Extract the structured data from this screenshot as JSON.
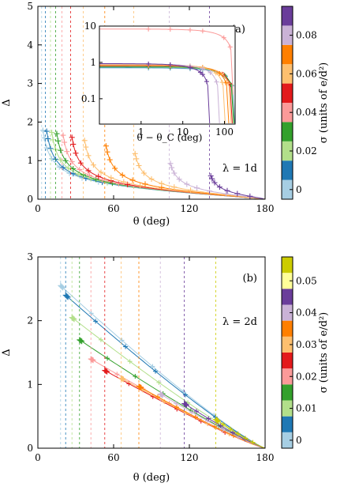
{
  "chart_data": [
    {
      "type": "line",
      "panel_label": "(a)",
      "annotation": "λ = 1d",
      "xlabel": "θ (deg)",
      "ylabel": "Δ",
      "xlim": [
        0,
        180
      ],
      "ylim": [
        0,
        5
      ],
      "xticks": [
        "0",
        "60",
        "120",
        "180"
      ],
      "yticks": [
        "0",
        "1",
        "2",
        "3",
        "4",
        "5"
      ],
      "colorbar": {
        "label": "σ (units of e/d²)",
        "ticks": [
          "0",
          "0.02",
          "0.04",
          "0.06",
          "0.08"
        ],
        "colors": [
          "#a6cee3",
          "#1f78b4",
          "#b2df8a",
          "#33a02c",
          "#fb9a99",
          "#e31a1c",
          "#fdbf6f",
          "#ff7f00",
          "#cab2d6",
          "#6a3d9a"
        ]
      },
      "series": [
        {
          "sigma": 0.0,
          "color": "#a6cee3",
          "theta_c": 3
        },
        {
          "sigma": 0.009,
          "color": "#1f78b4",
          "theta_c": 6
        },
        {
          "sigma": 0.018,
          "color": "#b2df8a",
          "theta_c": 10
        },
        {
          "sigma": 0.027,
          "color": "#33a02c",
          "theta_c": 14
        },
        {
          "sigma": 0.036,
          "color": "#fb9a99",
          "theta_c": 19
        },
        {
          "sigma": 0.045,
          "color": "#e31a1c",
          "theta_c": 26
        },
        {
          "sigma": 0.054,
          "color": "#fdbf6f",
          "theta_c": 36
        },
        {
          "sigma": 0.063,
          "color": "#ff7f00",
          "theta_c": 53
        },
        {
          "sigma": 0.072,
          "color": "#fdbf6f",
          "theta_c": 76
        },
        {
          "sigma": 0.081,
          "color": "#cab2d6",
          "theta_c": 104
        },
        {
          "sigma": 0.09,
          "color": "#6a3d9a",
          "theta_c": 136
        }
      ],
      "inset": {
        "type": "line",
        "xlabel": "θ − θ_C (deg)",
        "ylabel": "",
        "scale": "log-log",
        "xlim": [
          0.1,
          180
        ],
        "ylim": [
          0.02,
          10
        ],
        "xticks": [
          "1",
          "10",
          "100"
        ],
        "yticks": [
          "0.1",
          "1",
          "10"
        ]
      }
    },
    {
      "type": "line",
      "panel_label": "(b)",
      "annotation": "λ = 2d",
      "xlabel": "θ (deg)",
      "ylabel": "Δ",
      "xlim": [
        0,
        180
      ],
      "ylim": [
        0,
        3
      ],
      "xticks": [
        "0",
        "60",
        "120",
        "180"
      ],
      "yticks": [
        "0",
        "1",
        "2",
        "3"
      ],
      "colorbar": {
        "label": "σ (units of e/d²)",
        "ticks": [
          "0",
          "0.01",
          "0.02",
          "0.03",
          "0.04",
          "0.05"
        ],
        "colors": [
          "#a6cee3",
          "#1f78b4",
          "#b2df8a",
          "#33a02c",
          "#fb9a99",
          "#e31a1c",
          "#fdbf6f",
          "#ff7f00",
          "#cab2d6",
          "#6a3d9a",
          "#ffff99",
          "#cccc00"
        ]
      },
      "series": [
        {
          "sigma": 0.0,
          "color": "#a6cee3",
          "theta_c": 18,
          "delta_c": 2.55
        },
        {
          "sigma": 0.005,
          "color": "#1f78b4",
          "theta_c": 22,
          "delta_c": 2.4
        },
        {
          "sigma": 0.01,
          "color": "#b2df8a",
          "theta_c": 27,
          "delta_c": 2.05
        },
        {
          "sigma": 0.015,
          "color": "#33a02c",
          "theta_c": 33,
          "delta_c": 1.7
        },
        {
          "sigma": 0.02,
          "color": "#fb9a99",
          "theta_c": 42,
          "delta_c": 1.4
        },
        {
          "sigma": 0.025,
          "color": "#e31a1c",
          "theta_c": 53,
          "delta_c": 1.22
        },
        {
          "sigma": 0.03,
          "color": "#fdbf6f",
          "theta_c": 66,
          "delta_c": 1.1
        },
        {
          "sigma": 0.035,
          "color": "#ff7f00",
          "theta_c": 80,
          "delta_c": 0.97
        },
        {
          "sigma": 0.04,
          "color": "#cab2d6",
          "theta_c": 97,
          "delta_c": 0.85
        },
        {
          "sigma": 0.045,
          "color": "#6a3d9a",
          "theta_c": 116,
          "delta_c": 0.7
        },
        {
          "sigma": 0.05,
          "color": "#cccc00",
          "theta_c": 141,
          "delta_c": 0.45
        }
      ]
    }
  ]
}
